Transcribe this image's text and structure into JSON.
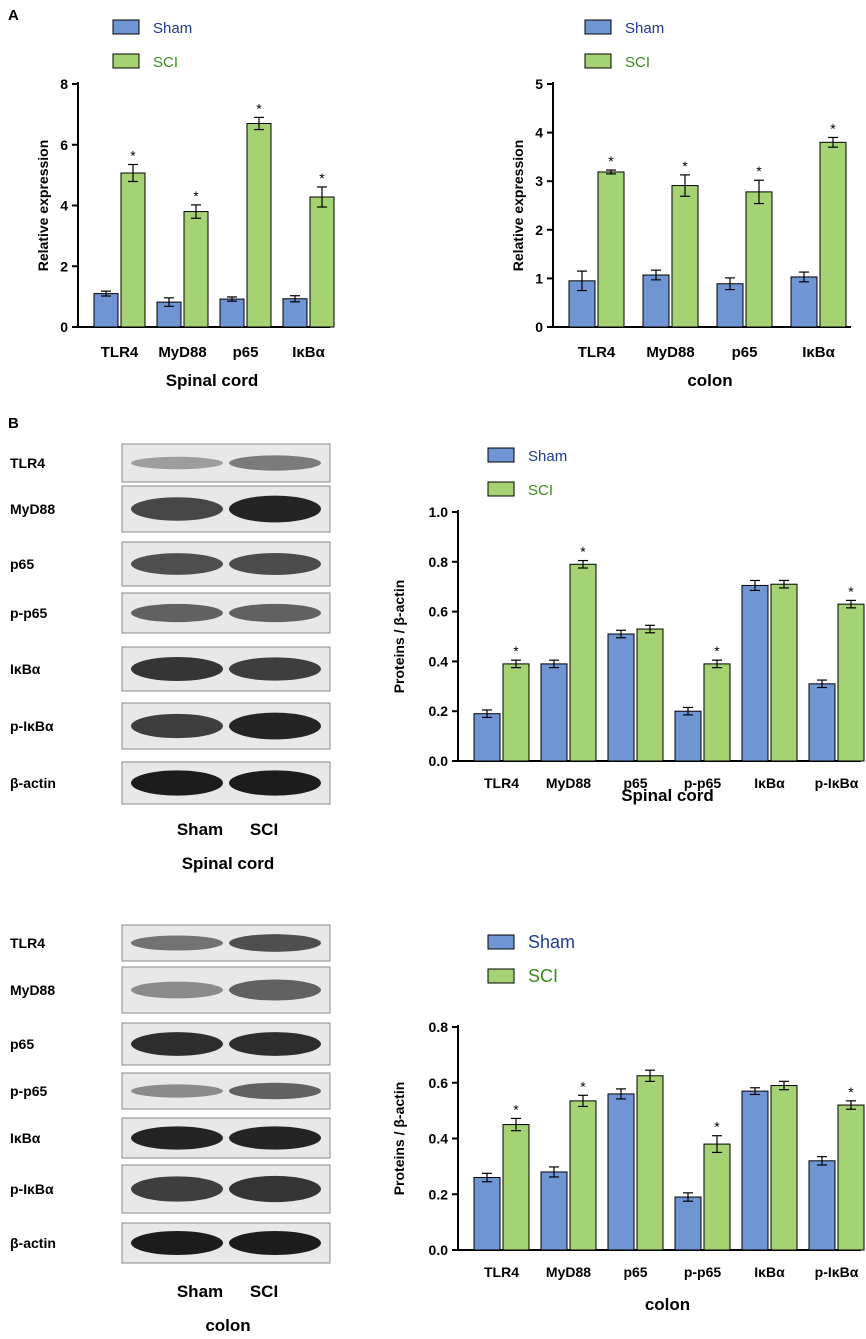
{
  "panels": {
    "a": "A",
    "b": "B"
  },
  "colors": {
    "sham": "#6f95d4",
    "sci": "#a5d373",
    "sham_legend_text": "#1f3a93",
    "sci_legend_text": "#3a8a1e"
  },
  "chart_data": [
    {
      "type": "bar",
      "categories": [
        "TLR4",
        "MyD88",
        "p65",
        "IκBα"
      ],
      "series": [
        {
          "name": "Sham",
          "values": [
            1.1,
            0.82,
            0.92,
            0.93
          ],
          "errors": [
            0.08,
            0.14,
            0.07,
            0.1
          ]
        },
        {
          "name": "SCI",
          "values": [
            5.07,
            3.8,
            6.7,
            4.28
          ],
          "errors": [
            0.28,
            0.22,
            0.2,
            0.33
          ]
        }
      ],
      "significance": [
        "*",
        "*",
        "*",
        "*"
      ],
      "xlabel": "Spinal cord",
      "ylabel": "Relative expression",
      "ylim": [
        0,
        8
      ],
      "yticks": [
        "0",
        "2",
        "4",
        "6",
        "8"
      ],
      "legend_position": "top-left",
      "grid": false
    },
    {
      "type": "bar",
      "categories": [
        "TLR4",
        "MyD88",
        "p65",
        "IκBα"
      ],
      "series": [
        {
          "name": "Sham",
          "values": [
            0.95,
            1.07,
            0.89,
            1.03
          ],
          "errors": [
            0.2,
            0.1,
            0.12,
            0.1
          ]
        },
        {
          "name": "SCI",
          "values": [
            3.19,
            2.91,
            2.78,
            3.8
          ],
          "errors": [
            0.04,
            0.22,
            0.24,
            0.1
          ]
        }
      ],
      "significance": [
        "*",
        "*",
        "*",
        "*"
      ],
      "xlabel": "colon",
      "ylabel": "Relative expression",
      "ylim": [
        0,
        5
      ],
      "yticks": [
        "0",
        "1",
        "2",
        "3",
        "4",
        "5"
      ],
      "legend_position": "top-left",
      "grid": false
    },
    {
      "type": "bar",
      "categories": [
        "TLR4",
        "MyD88",
        "p65",
        "p-p65",
        "IκBα",
        "p-IκBα"
      ],
      "series": [
        {
          "name": "Sham",
          "values": [
            0.19,
            0.39,
            0.51,
            0.2,
            0.705,
            0.31
          ],
          "errors": [
            0.015,
            0.015,
            0.015,
            0.015,
            0.02,
            0.015
          ]
        },
        {
          "name": "SCI",
          "values": [
            0.39,
            0.79,
            0.53,
            0.39,
            0.71,
            0.63
          ],
          "errors": [
            0.015,
            0.015,
            0.015,
            0.015,
            0.015,
            0.015
          ]
        }
      ],
      "significance": [
        "*",
        "*",
        "",
        "*",
        "",
        "*"
      ],
      "xlabel": "Spinal cord",
      "ylabel": "Proteins / β-actin",
      "ylim": [
        0,
        1.0
      ],
      "yticks": [
        "0.0",
        "0.2",
        "0.4",
        "0.6",
        "0.8",
        "1.0"
      ],
      "legend_position": "top-left",
      "grid": false
    },
    {
      "type": "bar",
      "categories": [
        "TLR4",
        "MyD88",
        "p65",
        "p-p65",
        "IκBα",
        "p-IκBα"
      ],
      "series": [
        {
          "name": "Sham",
          "values": [
            0.26,
            0.28,
            0.56,
            0.19,
            0.57,
            0.32
          ],
          "errors": [
            0.015,
            0.018,
            0.018,
            0.015,
            0.012,
            0.015
          ]
        },
        {
          "name": "SCI",
          "values": [
            0.45,
            0.535,
            0.625,
            0.38,
            0.59,
            0.52
          ],
          "errors": [
            0.022,
            0.02,
            0.02,
            0.03,
            0.015,
            0.015
          ]
        }
      ],
      "significance": [
        "*",
        "*",
        "",
        "*",
        "",
        "*"
      ],
      "xlabel": "colon",
      "ylabel": "Proteins / β-actin",
      "ylim": [
        0,
        0.8
      ],
      "yticks": [
        "0.0",
        "0.2",
        "0.4",
        "0.6",
        "0.8"
      ],
      "legend_position": "top-left",
      "grid": false
    }
  ],
  "blots": [
    {
      "rows": [
        "TLR4",
        "MyD88",
        "p65",
        "p-p65",
        "IκBα",
        "p-IκBα",
        "β-actin"
      ],
      "lanes": [
        "Sham",
        "SCI"
      ],
      "caption": "Spinal cord",
      "intensities": [
        [
          0.25,
          0.45
        ],
        [
          0.75,
          0.95
        ],
        [
          0.7,
          0.72
        ],
        [
          0.6,
          0.6
        ],
        [
          0.85,
          0.8
        ],
        [
          0.8,
          0.95
        ],
        [
          1.0,
          1.0
        ]
      ]
    },
    {
      "rows": [
        "TLR4",
        "MyD88",
        "p65",
        "p-p65",
        "IκBα",
        "p-IκBα",
        "β-actin"
      ],
      "lanes": [
        "Sham",
        "SCI"
      ],
      "caption": "colon",
      "intensities": [
        [
          0.5,
          0.7
        ],
        [
          0.35,
          0.6
        ],
        [
          0.9,
          0.9
        ],
        [
          0.35,
          0.6
        ],
        [
          0.95,
          0.95
        ],
        [
          0.8,
          0.85
        ],
        [
          1.0,
          1.0
        ]
      ]
    }
  ]
}
